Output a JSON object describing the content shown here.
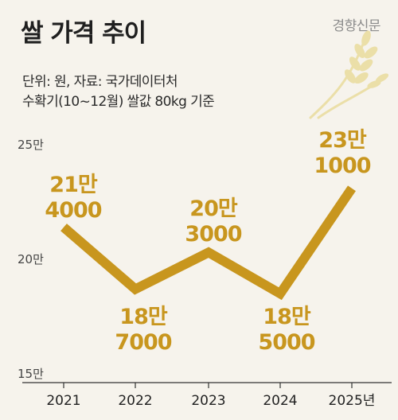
{
  "title": "쌀 가격 추이",
  "brand": "경향신문",
  "subtitle_lines": [
    "단위: 원, 자료: 국가데이터처",
    "수확기(10~12월) 쌀값 80kg 기준"
  ],
  "colors": {
    "line": "#c8961e",
    "label": "#c8961e",
    "background": "#f6f3ec",
    "axis": "#333333"
  },
  "chart_data": {
    "type": "line",
    "categories": [
      "2021",
      "2022",
      "2023",
      "2024",
      "2025년"
    ],
    "values": [
      214000,
      187000,
      203000,
      185000,
      231000
    ],
    "data_labels": [
      [
        "21만",
        "4000"
      ],
      [
        "18만",
        "7000"
      ],
      [
        "20만",
        "3000"
      ],
      [
        "18만",
        "5000"
      ],
      [
        "23만",
        "1000"
      ]
    ],
    "label_positions": [
      "above",
      "below",
      "above",
      "below",
      "above"
    ],
    "y_ticks": [
      {
        "value": 250000,
        "label": "25만"
      },
      {
        "value": 200000,
        "label": "20만"
      },
      {
        "value": 150000,
        "label": "15만"
      }
    ],
    "ylim": [
      150000,
      250000
    ],
    "grid": false,
    "legend": "none"
  }
}
